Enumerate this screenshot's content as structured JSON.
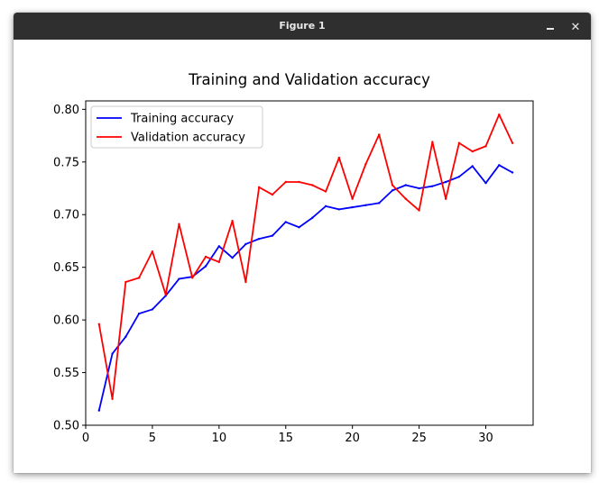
{
  "window": {
    "title": "Figure 1",
    "minimize_icon": "minimize-icon",
    "close_icon": "close-icon",
    "close_glyph": "✕"
  },
  "chart_data": {
    "type": "line",
    "title": "Training and Validation accuracy",
    "xlabel": "",
    "ylabel": "",
    "xlim": [
      0,
      33.55
    ],
    "ylim": [
      0.5,
      0.808
    ],
    "xticks": [
      0,
      5,
      10,
      15,
      20,
      25,
      30
    ],
    "yticks": [
      0.5,
      0.55,
      0.6,
      0.65,
      0.7,
      0.75,
      0.8
    ],
    "ytick_labels": [
      "0.50",
      "0.55",
      "0.60",
      "0.65",
      "0.70",
      "0.75",
      "0.80"
    ],
    "grid": false,
    "legend_position": "upper-left",
    "x": [
      1,
      2,
      3,
      4,
      5,
      6,
      7,
      8,
      9,
      10,
      11,
      12,
      13,
      14,
      15,
      16,
      17,
      18,
      19,
      20,
      21,
      22,
      23,
      24,
      25,
      26,
      27,
      28,
      29,
      30,
      31,
      32
    ],
    "series": [
      {
        "name": "Training accuracy",
        "color": "#0000ff",
        "values": [
          0.514,
          0.568,
          0.584,
          0.606,
          0.61,
          0.623,
          0.639,
          0.641,
          0.651,
          0.67,
          0.659,
          0.672,
          0.677,
          0.68,
          0.693,
          0.688,
          0.697,
          0.708,
          0.705,
          0.707,
          0.709,
          0.711,
          0.723,
          0.728,
          0.725,
          0.727,
          0.731,
          0.736,
          0.746,
          0.73,
          0.747,
          0.74
        ]
      },
      {
        "name": "Validation accuracy",
        "color": "#ff0000",
        "values": [
          0.596,
          0.525,
          0.636,
          0.64,
          0.665,
          0.624,
          0.691,
          0.64,
          0.66,
          0.655,
          0.694,
          0.636,
          0.726,
          0.719,
          0.731,
          0.731,
          0.728,
          0.722,
          0.754,
          0.715,
          0.748,
          0.776,
          0.728,
          0.715,
          0.704,
          0.769,
          0.715,
          0.768,
          0.76,
          0.765,
          0.795,
          0.768
        ]
      }
    ]
  }
}
